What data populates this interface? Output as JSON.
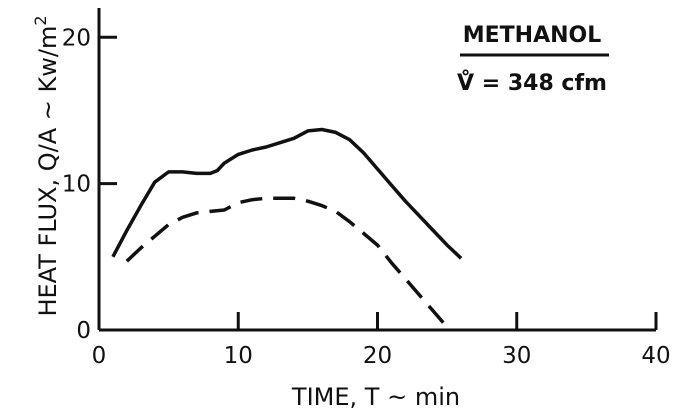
{
  "chart_data": {
    "type": "line",
    "title": "",
    "xlabel": "TIME, T ~ min",
    "ylabel": "HEAT FLUX, Q/A ~ Kw/m",
    "ylabel_superscript": "2",
    "xlim": [
      0,
      40
    ],
    "ylim": [
      0,
      22
    ],
    "x_ticks": [
      0,
      10,
      20,
      30,
      40
    ],
    "y_ticks": [
      0,
      10,
      20
    ],
    "x_tick_labels": [
      "0",
      "10",
      "20",
      "30",
      "40"
    ],
    "y_tick_labels": [
      "0",
      "10",
      "20"
    ],
    "grid": false,
    "legend": {
      "placement": "top-right",
      "title": "METHANOL",
      "subtitle": "V̊ = 348 cfm"
    },
    "series": [
      {
        "style": "solid",
        "x": [
          1,
          2,
          3,
          4,
          5,
          6,
          7,
          8,
          8.5,
          9,
          10,
          11,
          12,
          13,
          14,
          15,
          16,
          17,
          18,
          19,
          20,
          21,
          22,
          23,
          24,
          25,
          26
        ],
        "y": [
          5.0,
          6.8,
          8.5,
          10.1,
          10.8,
          10.8,
          10.7,
          10.7,
          10.9,
          11.4,
          12.0,
          12.3,
          12.5,
          12.8,
          13.1,
          13.6,
          13.7,
          13.5,
          13.0,
          12.1,
          11.0,
          9.9,
          8.8,
          7.8,
          6.8,
          5.8,
          4.9
        ]
      },
      {
        "style": "dashed",
        "x": [
          2,
          3,
          4,
          5,
          6,
          7,
          8,
          9,
          10,
          11,
          12,
          13,
          14,
          15,
          16,
          17,
          18,
          19,
          20,
          21,
          22,
          23,
          24,
          25
        ],
        "y": [
          4.7,
          5.6,
          6.4,
          7.2,
          7.7,
          8.0,
          8.1,
          8.2,
          8.7,
          8.9,
          9.0,
          9.0,
          9.0,
          8.8,
          8.5,
          8.1,
          7.4,
          6.6,
          5.8,
          4.6,
          3.5,
          2.4,
          1.3,
          0.2
        ]
      }
    ]
  }
}
